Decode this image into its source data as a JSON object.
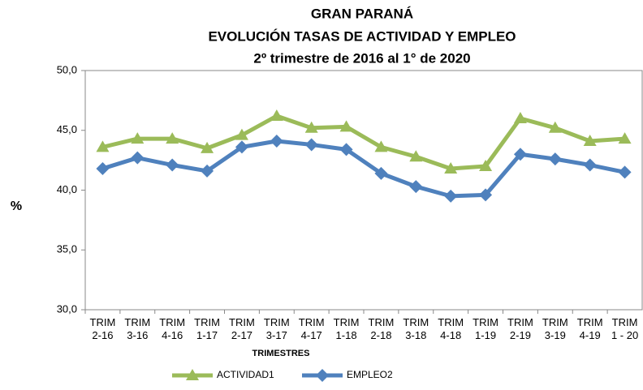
{
  "chart_data": {
    "type": "line",
    "title": "GRAN PARANÁ",
    "subtitle": "EVOLUCIÓN TASAS DE ACTIVIDAD Y EMPLEO",
    "subtitle2": "2º trimestre de 2016 al 1° de 2020",
    "y_label": "%",
    "x_label": "TRIMESTRES",
    "categories": [
      "TRIM\n2-16",
      "TRIM\n3-16",
      "TRIM\n4-16",
      "TRIM\n1-17",
      "TRIM\n2-17",
      "TRIM\n3-17",
      "TRIM\n4-17",
      "TRIM\n1-18",
      "TRIM\n2-18",
      "TRIM\n3-18",
      "TRIM\n4-18",
      "TRIM\n1-19",
      "TRIM\n2-19",
      "TRIM\n3-19",
      "TRIM\n4-19",
      "TRIM\n1 - 20"
    ],
    "series": [
      {
        "name": "ACTIVIDAD1",
        "color": "#9bbb59",
        "marker": "triangle",
        "values": [
          43.6,
          44.3,
          44.3,
          43.5,
          44.6,
          46.2,
          45.2,
          45.3,
          43.6,
          42.8,
          41.8,
          42.0,
          46.0,
          45.2,
          44.1,
          44.3
        ]
      },
      {
        "name": "EMPLEO2",
        "color": "#4f81bd",
        "marker": "diamond",
        "values": [
          41.8,
          42.7,
          42.1,
          41.6,
          43.6,
          44.1,
          43.8,
          43.4,
          41.4,
          40.3,
          39.5,
          39.6,
          43.0,
          42.6,
          42.1,
          41.5
        ]
      }
    ],
    "ylim": [
      30,
      50
    ],
    "yticks": [
      {
        "value": 30,
        "label": "30,0"
      },
      {
        "value": 35,
        "label": "35,0"
      },
      {
        "value": 40,
        "label": "40,0"
      },
      {
        "value": 45,
        "label": "45,0"
      },
      {
        "value": 50,
        "label": "50,0"
      }
    ],
    "grid": false,
    "legend": "bottom"
  }
}
